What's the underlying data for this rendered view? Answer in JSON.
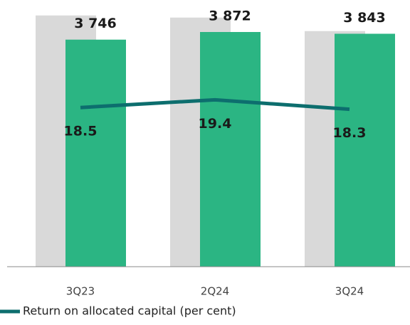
{
  "chart_data": {
    "type": "bar",
    "categories": [
      "3Q23",
      "2Q24",
      "3Q24"
    ],
    "ylim": [
      0,
      4400
    ],
    "y2lim": [
      0,
      31
    ],
    "series": [
      {
        "color": "#d9d9d9",
        "values": [
          4145,
          4110,
          3887
        ]
      },
      {
        "color": "#2bb583",
        "values": [
          3746,
          3872,
          3843
        ],
        "value_labels": [
          "3 746",
          "3 872",
          "3 843"
        ]
      },
      {
        "name": "Return on allocated capital (per cent)",
        "color": "#0d6e6e",
        "axis": "y2",
        "type": "line",
        "values": [
          18.5,
          19.4,
          18.3
        ]
      }
    ]
  }
}
